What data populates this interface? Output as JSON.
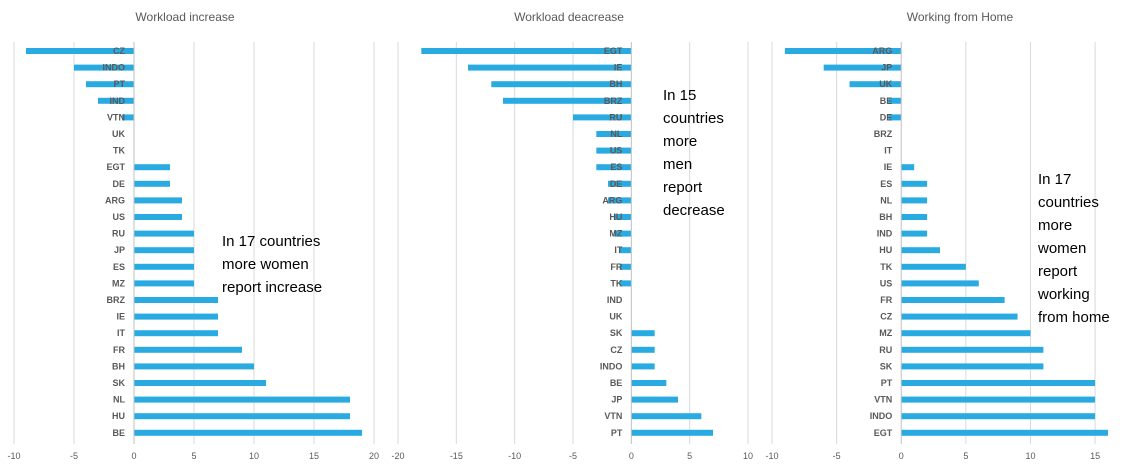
{
  "chart_data": [
    {
      "type": "bar",
      "orientation": "horizontal",
      "title": "Workload increase",
      "xlim": [
        -10,
        20
      ],
      "ticks": [
        -10,
        -5,
        0,
        5,
        10,
        15,
        20
      ],
      "grid": true,
      "bar_color": "#29ABE2",
      "annotation": "In 17 countries\nmore women\nreport increase",
      "categories": [
        "CZ",
        "INDO",
        "PT",
        "IND",
        "VTN",
        "UK",
        "TK",
        "EGT",
        "DE",
        "ARG",
        "US",
        "RU",
        "JP",
        "ES",
        "MZ",
        "BRZ",
        "IE",
        "IT",
        "FR",
        "BH",
        "SK",
        "NL",
        "HU",
        "BE"
      ],
      "values": [
        -9,
        -5,
        -4,
        -3,
        -1,
        0,
        0,
        3,
        3,
        4,
        4,
        5,
        5,
        5,
        5,
        7,
        7,
        7,
        9,
        10,
        11,
        18,
        18,
        19
      ]
    },
    {
      "type": "bar",
      "orientation": "horizontal",
      "title": "Workload deacrease",
      "xlim": [
        -20,
        10
      ],
      "ticks": [
        -20,
        -15,
        -10,
        -5,
        0,
        5,
        10
      ],
      "grid": true,
      "bar_color": "#29ABE2",
      "annotation": "In 15\ncountries\nmore\nmen\nreport\ndecrease",
      "categories": [
        "EGT",
        "IE",
        "BH",
        "BRZ",
        "RU",
        "NL",
        "US",
        "ES",
        "DE",
        "ARG",
        "HU",
        "MZ",
        "IT",
        "FR",
        "TK",
        "IND",
        "UK",
        "SK",
        "CZ",
        "INDO",
        "BE",
        "JP",
        "VTN",
        "PT"
      ],
      "values": [
        -18,
        -14,
        -12,
        -11,
        -5,
        -3,
        -3,
        -3,
        -2,
        -2,
        -1.5,
        -1.5,
        -1,
        -1,
        -1,
        0,
        0,
        2,
        2,
        2,
        3,
        4,
        6,
        7
      ]
    },
    {
      "type": "bar",
      "orientation": "horizontal",
      "title": "Working from Home",
      "xlim": [
        -10,
        16
      ],
      "ticks": [
        -10,
        -5,
        0,
        5,
        10,
        15
      ],
      "grid": true,
      "bar_color": "#29ABE2",
      "annotation": "In 17\ncountries\nmore\nwomen\nreport\nworking\nfrom home",
      "categories": [
        "ARG",
        "JP",
        "UK",
        "BE",
        "DE",
        "BRZ",
        "IT",
        "IE",
        "ES",
        "NL",
        "BH",
        "IND",
        "HU",
        "TK",
        "US",
        "FR",
        "CZ",
        "MZ",
        "RU",
        "SK",
        "PT",
        "VTN",
        "INDO",
        "EGT"
      ],
      "values": [
        -9,
        -6,
        -4,
        -1,
        -1,
        0,
        0,
        1,
        2,
        2,
        2,
        2,
        3,
        5,
        6,
        8,
        9,
        10,
        11,
        11,
        15,
        15,
        15,
        16
      ]
    }
  ]
}
